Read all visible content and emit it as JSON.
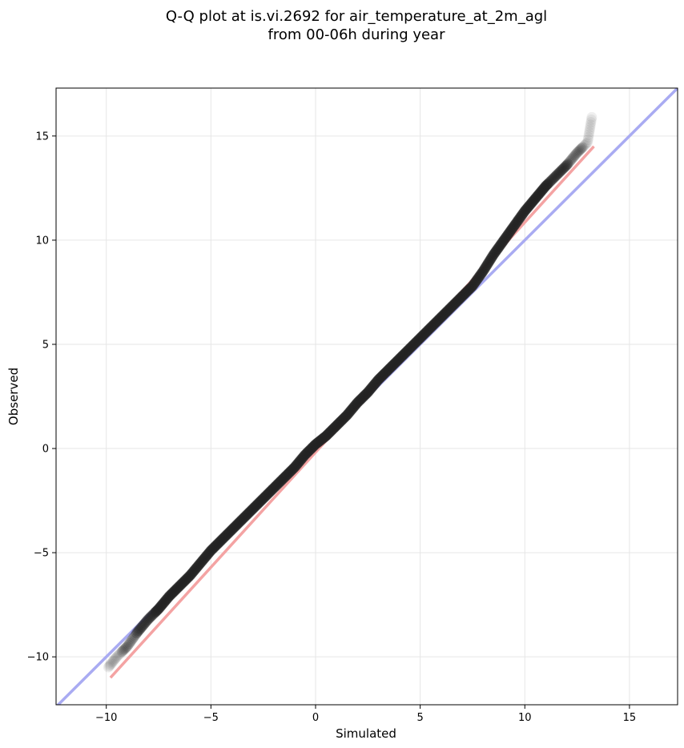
{
  "chart_data": {
    "type": "scatter",
    "title_lines": [
      "Q-Q plot at is.vi.2692 for air_temperature_at_2m_agl",
      "from 00-06h during year"
    ],
    "xlabel": "Simulated",
    "ylabel": "Observed",
    "xlim": [
      -12.4,
      17.3
    ],
    "ylim": [
      -12.3,
      17.3
    ],
    "xticks": [
      -10,
      -5,
      0,
      5,
      10,
      15
    ],
    "yticks": [
      -10,
      -5,
      0,
      5,
      10,
      15
    ],
    "xtick_labels": [
      "−10",
      "−5",
      "0",
      "5",
      "10",
      "15"
    ],
    "ytick_labels": [
      "−10",
      "−5",
      "0",
      "5",
      "10",
      "15"
    ],
    "grid": true,
    "reference_line": {
      "slope": 1,
      "intercept": 0,
      "color": "#a9abf2"
    },
    "fit_line": {
      "x": [
        -9.8,
        13.3
      ],
      "y": [
        -11.0,
        14.5
      ],
      "color": "#f4a3a3"
    },
    "quantile_curve": {
      "x": [
        -9.9,
        -9.5,
        -9.0,
        -8.5,
        -8.0,
        -7.5,
        -7.0,
        -6.5,
        -6.0,
        -5.5,
        -5.0,
        -4.5,
        -4.0,
        -3.5,
        -3.0,
        -2.5,
        -2.0,
        -1.5,
        -1.0,
        -0.5,
        0.0,
        0.5,
        1.0,
        1.5,
        2.0,
        2.5,
        3.0,
        3.5,
        4.0,
        4.5,
        5.0,
        5.5,
        6.0,
        6.5,
        7.0,
        7.5,
        8.0,
        8.5,
        9.0,
        9.5,
        10.0,
        10.5,
        11.0,
        11.5,
        12.0,
        12.5,
        13.0,
        13.2
      ],
      "y": [
        -10.5,
        -10.0,
        -9.5,
        -8.8,
        -8.2,
        -7.7,
        -7.1,
        -6.6,
        -6.1,
        -5.5,
        -4.9,
        -4.4,
        -3.9,
        -3.4,
        -2.9,
        -2.4,
        -1.9,
        -1.4,
        -0.9,
        -0.3,
        0.2,
        0.6,
        1.1,
        1.6,
        2.2,
        2.7,
        3.3,
        3.8,
        4.3,
        4.8,
        5.3,
        5.8,
        6.3,
        6.8,
        7.3,
        7.8,
        8.5,
        9.3,
        10.0,
        10.7,
        11.4,
        12.0,
        12.6,
        13.1,
        13.6,
        14.2,
        14.7,
        15.9
      ]
    }
  }
}
